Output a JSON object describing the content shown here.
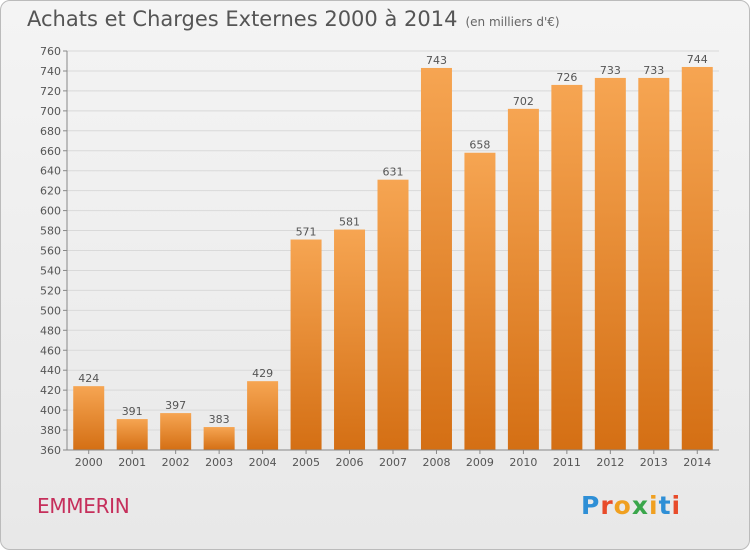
{
  "title": "Achats et Charges Externes 2000 à 2014",
  "subtitle": "(en milliers d'€)",
  "commune": "EMMERIN",
  "logo": "Proxiti",
  "colors": {
    "bar_top": "#f6a552",
    "bar_bottom": "#d46f14",
    "commune": "#c62f5b",
    "text": "#555555",
    "grid": "#d9d9d9"
  },
  "chart_data": {
    "type": "bar",
    "categories": [
      "2000",
      "2001",
      "2002",
      "2003",
      "2004",
      "2005",
      "2006",
      "2007",
      "2008",
      "2009",
      "2010",
      "2011",
      "2012",
      "2013",
      "2014"
    ],
    "values": [
      424,
      391,
      397,
      383,
      429,
      571,
      581,
      631,
      743,
      658,
      702,
      726,
      733,
      733,
      744
    ],
    "ylim": [
      360,
      760
    ],
    "ytick_step": 20,
    "grid": true,
    "data_labels": true
  }
}
